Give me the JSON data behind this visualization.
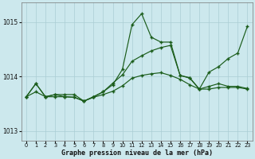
{
  "xlabel": "Graphe pression niveau de la mer (hPa)",
  "ylim": [
    1012.83,
    1015.35
  ],
  "xlim": [
    -0.5,
    23.5
  ],
  "yticks": [
    1013,
    1014,
    1015
  ],
  "xticks": [
    0,
    1,
    2,
    3,
    4,
    5,
    6,
    7,
    8,
    9,
    10,
    11,
    12,
    13,
    14,
    15,
    16,
    17,
    18,
    19,
    20,
    21,
    22,
    23
  ],
  "bg_color": "#cce8ed",
  "grid_color": "#aacdd4",
  "line_color": "#1a5c1a",
  "lines": [
    [
      1013.63,
      1013.87,
      1013.63,
      1013.67,
      1013.67,
      1013.67,
      1013.55,
      1013.63,
      1013.72,
      1013.85,
      1014.13,
      1014.95,
      1015.15,
      1014.72,
      1014.63,
      1014.63,
      1014.02,
      1013.98,
      1013.77,
      1014.08,
      1014.18,
      1014.33,
      1014.43,
      1014.92
    ],
    [
      1013.63,
      1013.87,
      1013.63,
      1013.67,
      1013.63,
      1013.62,
      1013.55,
      1013.63,
      1013.72,
      1013.88,
      1014.03,
      1014.28,
      1014.38,
      1014.47,
      1014.53,
      1014.57,
      1014.02,
      1013.97,
      1013.77,
      1013.82,
      1013.87,
      1013.82,
      1013.82,
      1013.78
    ],
    [
      1013.63,
      1013.72,
      1013.63,
      1013.63,
      1013.63,
      1013.62,
      1013.55,
      1013.62,
      1013.67,
      1013.73,
      1013.83,
      1013.97,
      1014.02,
      1014.05,
      1014.07,
      1014.02,
      1013.95,
      1013.85,
      1013.77,
      1013.77,
      1013.8,
      1013.8,
      1013.8,
      1013.77
    ]
  ]
}
